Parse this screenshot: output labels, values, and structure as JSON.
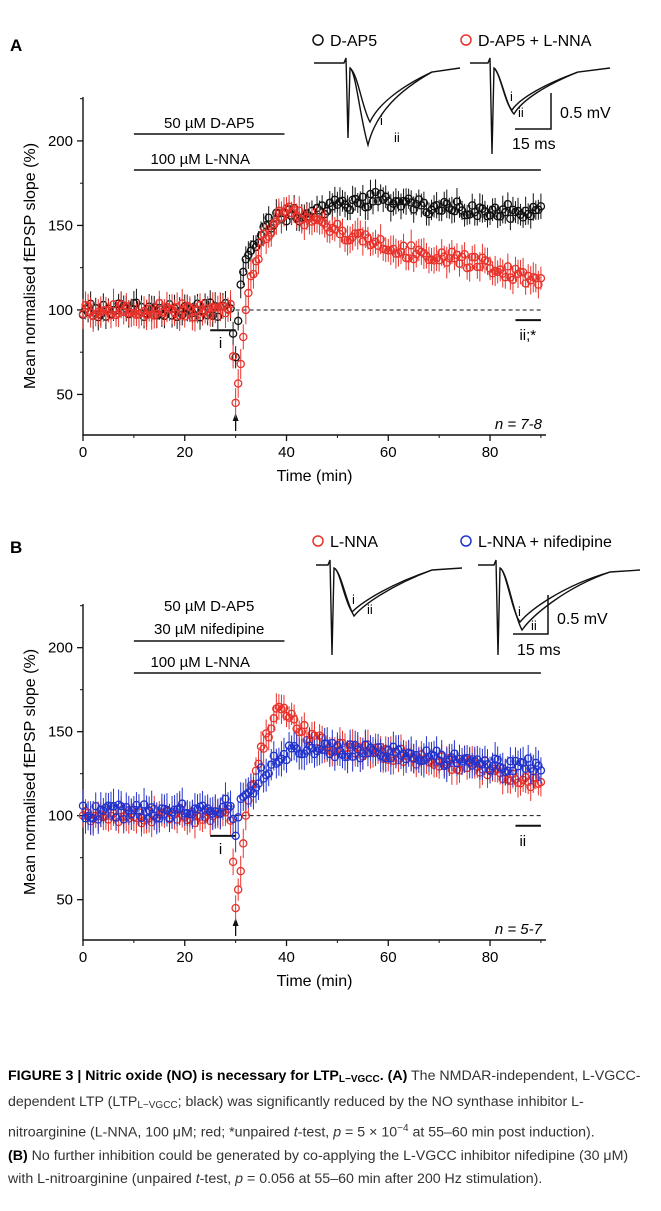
{
  "chart_data": [
    {
      "panel": "A",
      "type": "scatter",
      "xlabel": "Time (min)",
      "ylabel": "Mean normalised fEPSP slope (%)",
      "xlim": [
        0,
        91
      ],
      "ylim": [
        26,
        226
      ],
      "xticks": [
        0,
        20,
        40,
        60,
        80
      ],
      "yticks": [
        50,
        100,
        150,
        200
      ],
      "baseline": 100,
      "n_label": "n = 7-8",
      "bars": [
        {
          "label": "50 µM D-AP5",
          "x": [
            10,
            39.6
          ]
        },
        {
          "label": "100 µM L-NNA",
          "x": [
            10,
            90
          ]
        }
      ],
      "window_i": {
        "label": "i",
        "x": [
          25,
          30
        ]
      },
      "window_ii": {
        "label": "ii;*",
        "x": [
          85,
          90
        ]
      },
      "arrow_x": 30,
      "series": [
        {
          "name": "D-AP5",
          "color": "#111111",
          "anchors": [
            [
              0,
              100
            ],
            [
              29,
              100
            ],
            [
              30,
              72
            ],
            [
              31,
              115
            ],
            [
              32,
              130
            ],
            [
              33,
              135
            ],
            [
              34,
              140
            ],
            [
              36,
              150
            ],
            [
              38,
              155
            ],
            [
              40,
              155
            ],
            [
              45,
              158
            ],
            [
              50,
              161
            ],
            [
              55,
              164
            ],
            [
              58,
              166
            ],
            [
              62,
              162
            ],
            [
              70,
              160
            ],
            [
              80,
              159
            ],
            [
              90,
              157
            ]
          ],
          "err": 7
        },
        {
          "name": "D-AP5 + L-NNA",
          "color": "#e8322b",
          "anchors": [
            [
              0,
              100
            ],
            [
              29,
              100
            ],
            [
              30,
              45
            ],
            [
              31,
              68
            ],
            [
              32,
              100
            ],
            [
              33,
              120
            ],
            [
              34,
              130
            ],
            [
              36,
              145
            ],
            [
              38,
              155
            ],
            [
              40,
              158
            ],
            [
              45,
              152
            ],
            [
              50,
              147
            ],
            [
              55,
              141
            ],
            [
              60,
              136
            ],
            [
              70,
              132
            ],
            [
              80,
              126
            ],
            [
              90,
              117
            ]
          ],
          "err": 8
        }
      ]
    },
    {
      "panel": "B",
      "type": "scatter",
      "xlabel": "Time (min)",
      "ylabel": "Mean normalised fEPSP slope (%)",
      "xlim": [
        0,
        91
      ],
      "ylim": [
        26,
        226
      ],
      "xticks": [
        0,
        20,
        40,
        60,
        80
      ],
      "yticks": [
        50,
        100,
        150,
        200
      ],
      "baseline": 100,
      "n_label": "n = 5-7",
      "bars": [
        {
          "label": "50 µM D-AP5",
          "x": [
            10,
            39.6
          ]
        },
        {
          "label": "30 µM nifedipine",
          "x": [
            10,
            39.6
          ]
        },
        {
          "label": "100 µM L-NNA",
          "x": [
            10,
            90
          ]
        }
      ],
      "window_i": {
        "label": "i",
        "x": [
          25,
          30
        ]
      },
      "window_ii": {
        "label": "ii",
        "x": [
          85,
          90
        ]
      },
      "arrow_x": 30,
      "series": [
        {
          "name": "L-NNA",
          "color": "#e8322b",
          "anchors": [
            [
              0,
              100
            ],
            [
              29,
              100
            ],
            [
              30,
              45
            ],
            [
              31,
              67
            ],
            [
              32,
              100
            ],
            [
              33,
              118
            ],
            [
              34,
              128
            ],
            [
              36,
              148
            ],
            [
              38,
              160
            ],
            [
              39,
              165
            ],
            [
              40,
              160
            ],
            [
              45,
              145
            ],
            [
              50,
              140
            ],
            [
              60,
              137
            ],
            [
              70,
              133
            ],
            [
              80,
              128
            ],
            [
              90,
              117
            ]
          ],
          "err": 8
        },
        {
          "name": "L-NNA + nifedipine",
          "color": "#2233cc",
          "anchors": [
            [
              0,
              102
            ],
            [
              27,
              103
            ],
            [
              29,
              108
            ],
            [
              30,
              88
            ],
            [
              31,
              110
            ],
            [
              33,
              115
            ],
            [
              35,
              125
            ],
            [
              38,
              133
            ],
            [
              40,
              137
            ],
            [
              45,
              140
            ],
            [
              50,
              139
            ],
            [
              60,
              137
            ],
            [
              70,
              134
            ],
            [
              80,
              130
            ],
            [
              90,
              131
            ]
          ],
          "err": 9
        }
      ]
    }
  ],
  "panelA": {
    "letter": "A",
    "legend1": "D-AP5",
    "legend2": "D-AP5 + L-NNA",
    "scale_mv": "0.5 mV",
    "scale_ms": "15 ms",
    "trace_i": "i",
    "trace_ii": "ii"
  },
  "panelB": {
    "letter": "B",
    "legend1": "L-NNA",
    "legend2": "L-NNA + nifedipine",
    "scale_mv": "0.5 mV",
    "scale_ms": "15 ms",
    "trace_i": "i",
    "trace_ii": "ii"
  },
  "caption": {
    "title_a": "FIGURE 3 | Nitric oxide (NO) is necessary for LTP",
    "title_sub": "L−VGCC",
    "title_b": ".",
    "s1": " (A)",
    "s2": " The NMDAR-independent, L-VGCC-dependent LTP (LTP",
    "s2_sub": "L−VGCC",
    "s3": "; black) was significantly reduced by the NO synthase inhibitor L-nitroarginine (L-NNA, 100 μM; red; *unpaired ",
    "s3_t": "t",
    "s4": "-test, ",
    "s4_p": "p",
    "s5": " = 5 × 10",
    "s5_exp": "−4",
    "s6": " at 55–60 min post induction).",
    "s7": "(B)",
    "s8": " No further inhibition could be generated by co-applying the L-VGCC inhibitor nifedipine (30 μM) with L-nitroarginine (unpaired ",
    "s8_t": "t",
    "s9": "-test, ",
    "s9_p": "p",
    "s10": " = 0.056 at 55–60 min after 200 Hz stimulation)."
  }
}
